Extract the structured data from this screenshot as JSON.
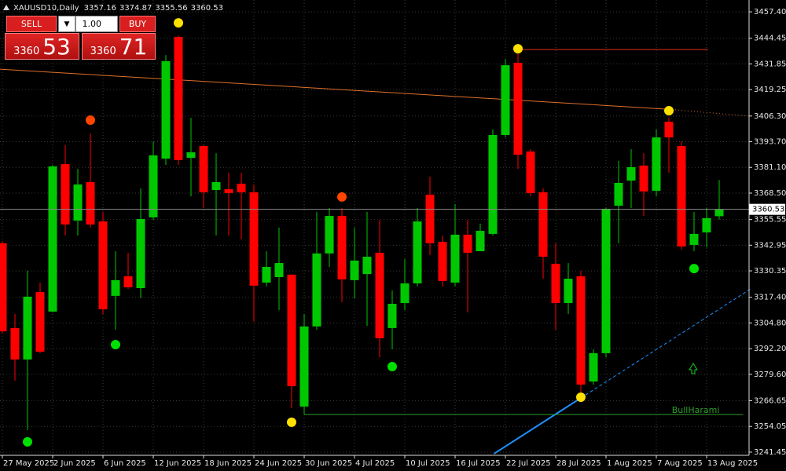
{
  "header": {
    "symbol": "XAUUSD10,Daily"
  },
  "trade_panel": {
    "sell": "SELL",
    "lot": "1.00",
    "buy": "BUY",
    "bid_big": "3360",
    "bid_small": "53",
    "ask_big": "3360",
    "ask_small": "71"
  },
  "chart_data": {
    "type": "candlestick",
    "categories": [
      "27 May 2025",
      null,
      null,
      null,
      "2 Jun 2025",
      null,
      null,
      null,
      "6 Jun 2025",
      null,
      null,
      null,
      "12 Jun 2025",
      null,
      null,
      null,
      "18 Jun 2025",
      null,
      null,
      null,
      "24 Jun 2025",
      null,
      null,
      null,
      "30 Jun 2025",
      null,
      null,
      null,
      "4 Jul 2025",
      null,
      null,
      null,
      "10 Jul 2025",
      null,
      null,
      null,
      "16 Jul 2025",
      null,
      null,
      null,
      "22 Jul 2025",
      null,
      null,
      null,
      "28 Jul 2025",
      null,
      null,
      null,
      "1 Aug 2025",
      null,
      null,
      null,
      "7 Aug 2025",
      null,
      null,
      null,
      "13 Aug 2025",
      null
    ],
    "open": [
      3343.9,
      3302.3,
      3286.9,
      3320.0,
      3310.4,
      3382.7,
      3355.0,
      3373.9,
      3354.6,
      3318.1,
      3327.7,
      3321.9,
      3356.6,
      3385.4,
      3445.1,
      3385.8,
      3391.6,
      3370.0,
      3370.4,
      3373.1,
      3368.9,
      3324.6,
      3327.3,
      3328.5,
      3263.8,
      3303.1,
      3338.9,
      3357.3,
      3325.8,
      3328.8,
      3339.2,
      3302.3,
      3314.6,
      3324.2,
      3367.7,
      3344.6,
      3324.6,
      3348.1,
      3340.0,
      3348.5,
      3397.0,
      3432.4,
      3388.9,
      3368.9,
      3333.8,
      3314.6,
      3327.7,
      3276.1,
      3290.0,
      3362.3,
      3374.6,
      3382.0,
      3369.6,
      3403.5,
      3391.6,
      3343.1,
      3349.2,
      3357.16
    ],
    "high": [
      3345.0,
      3309.2,
      3330.4,
      3324.6,
      3382.3,
      3392.0,
      3380.4,
      3397.7,
      3359.3,
      3340.0,
      3339.2,
      3370.8,
      3393.9,
      3436.2,
      3445.9,
      3405.4,
      3392.0,
      3388.1,
      3378.5,
      3378.5,
      3372.7,
      3340.0,
      3351.6,
      3328.5,
      3309.2,
      3359.3,
      3361.2,
      3361.2,
      3351.6,
      3359.3,
      3355.4,
      3320.8,
      3336.2,
      3361.2,
      3376.6,
      3347.7,
      3363.1,
      3355.4,
      3353.5,
      3399.7,
      3434.3,
      3440.1,
      3390.0,
      3370.8,
      3343.9,
      3334.2,
      3330.4,
      3291.9,
      3361.2,
      3384.3,
      3390.0,
      3388.1,
      3399.7,
      3405.4,
      3393.9,
      3359.3,
      3361.2,
      3374.87
    ],
    "low": [
      3299.6,
      3276.5,
      3252.2,
      3290.0,
      3310.0,
      3347.7,
      3347.7,
      3351.6,
      3309.2,
      3301.5,
      3321.5,
      3316.9,
      3355.4,
      3382.3,
      3382.3,
      3366.9,
      3361.2,
      3347.7,
      3347.7,
      3345.8,
      3305.4,
      3322.7,
      3311.1,
      3263.0,
      3259.9,
      3301.5,
      3332.3,
      3315.0,
      3316.9,
      3303.4,
      3288.0,
      3291.9,
      3311.1,
      3322.7,
      3338.1,
      3322.7,
      3322.7,
      3310.0,
      3340.0,
      3347.7,
      3395.8,
      3380.4,
      3366.9,
      3326.5,
      3301.5,
      3309.2,
      3270.7,
      3274.6,
      3288.0,
      3343.9,
      3361.2,
      3357.3,
      3366.9,
      3378.5,
      3340.8,
      3340.0,
      3341.9,
      3355.56
    ],
    "close": [
      3300.7,
      3286.9,
      3317.7,
      3290.7,
      3381.6,
      3353.1,
      3372.7,
      3353.1,
      3311.5,
      3325.8,
      3322.3,
      3355.8,
      3387.0,
      3433.2,
      3384.7,
      3388.5,
      3368.9,
      3373.9,
      3368.5,
      3368.9,
      3323.1,
      3332.3,
      3334.2,
      3273.8,
      3303.1,
      3338.9,
      3357.3,
      3326.2,
      3335.4,
      3337.3,
      3297.3,
      3314.2,
      3324.2,
      3354.6,
      3343.9,
      3325.4,
      3348.1,
      3339.2,
      3350.0,
      3397.0,
      3431.2,
      3387.3,
      3368.5,
      3337.3,
      3314.6,
      3326.5,
      3274.6,
      3290.0,
      3360.8,
      3373.5,
      3381.2,
      3369.3,
      3395.8,
      3395.8,
      3342.3,
      3348.5,
      3356.2,
      3360.53
    ],
    "colors": {
      "up": "#00c800",
      "down": "#ff0000"
    },
    "ylim": [
      3239.9,
      3463.2
    ],
    "yticks": [
      {
        "value": 3457.4,
        "label": "3457.40"
      },
      3444.45,
      3431.85,
      3419.25,
      {
        "value": 3406.3,
        "label": "3406.30"
      },
      {
        "value": 3393.7,
        "label": "3393.70"
      },
      {
        "value": 3381.1,
        "label": "3381.10"
      },
      {
        "value": 3368.5,
        "label": "3368.50"
      },
      3355.55,
      3342.95,
      3330.35,
      {
        "value": 3317.4,
        "label": "3317.40"
      },
      {
        "value": 3304.8,
        "label": "3304.80"
      },
      {
        "value": 3292.2,
        "label": "3292.20"
      },
      {
        "value": 3279.6,
        "label": "3279.60"
      },
      3266.65,
      3254.05,
      3241.45
    ],
    "grid": true,
    "signals": [
      {
        "index": 2,
        "value": 3246.5,
        "color": "#00e000"
      },
      {
        "index": 7,
        "value": 3404.3,
        "color": "#ff4500"
      },
      {
        "index": 9,
        "value": 3294.2,
        "color": "#00e000"
      },
      {
        "index": 14,
        "value": 3452.0,
        "color": "#ffe000"
      },
      {
        "index": 23,
        "value": 3256.1,
        "color": "#ffe000"
      },
      {
        "index": 27,
        "value": 3366.6,
        "color": "#ff4500"
      },
      {
        "index": 31,
        "value": 3283.4,
        "color": "#00e000"
      },
      {
        "index": 41,
        "value": 3439.3,
        "color": "#ffe000"
      },
      {
        "index": 46,
        "value": 3268.4,
        "color": "#ffe000"
      },
      {
        "index": 53,
        "value": 3408.9,
        "color": "#ffe000"
      },
      {
        "index": 55,
        "value": 3331.5,
        "color": "#00e000"
      }
    ],
    "lines": [
      {
        "color": "#e0702a",
        "x": [
          -0.2,
          53,
          59.5
        ],
        "values": [
          3429.3,
          3409.6,
          3406.2
        ],
        "segment_styles": [
          "solid",
          "dotted"
        ]
      },
      {
        "color": "#e0301e",
        "x": [
          41,
          56.1
        ],
        "values": [
          3438.9,
          3438.9
        ],
        "segment_styles": [
          "solid"
        ]
      },
      {
        "color": "#1e90ff",
        "x": [
          39.1,
          46,
          59.5
        ],
        "values": [
          3240.7,
          3268.0,
          3321.5
        ],
        "segment_styles": [
          "solid",
          "dashed"
        ]
      },
      {
        "color": "#2e9e2e",
        "x": [
          24,
          58.9
        ],
        "values": [
          3259.9,
          3259.9
        ],
        "segment_styles": [
          "solid"
        ],
        "label": "BullHarami"
      }
    ]
  }
}
